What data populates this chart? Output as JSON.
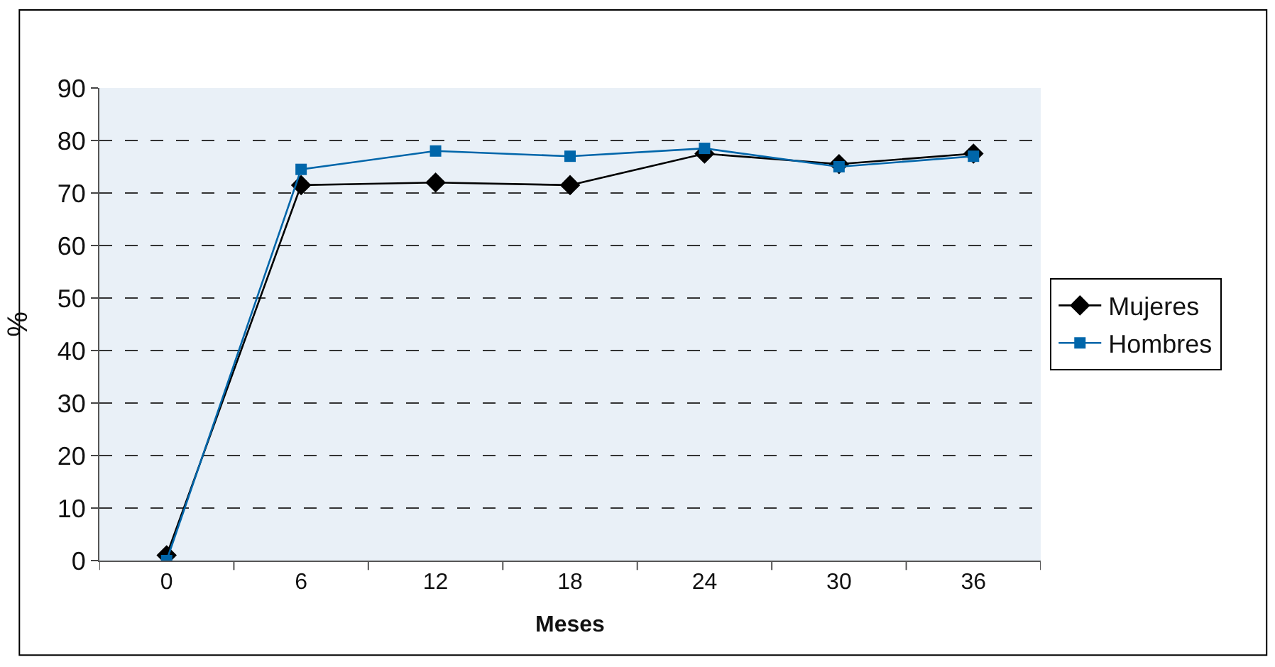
{
  "chart_data": {
    "type": "line",
    "xlabel": "Meses",
    "ylabel": "%",
    "categories": [
      "0",
      "6",
      "12",
      "18",
      "24",
      "30",
      "36"
    ],
    "series": [
      {
        "name": "Mujeres",
        "color": "#000000",
        "marker": "diamond",
        "values": [
          1,
          71.5,
          72,
          71.5,
          77.5,
          75.5,
          77.5
        ]
      },
      {
        "name": "Hombres",
        "color": "#0066aa",
        "marker": "square",
        "values": [
          0,
          74.5,
          78,
          77,
          78.5,
          75,
          77
        ]
      }
    ],
    "ylim": [
      0,
      90
    ],
    "yticks": [
      0,
      10,
      20,
      30,
      40,
      50,
      60,
      70,
      80,
      90
    ],
    "grid": "y",
    "legend": "right",
    "line_style": "solid"
  }
}
